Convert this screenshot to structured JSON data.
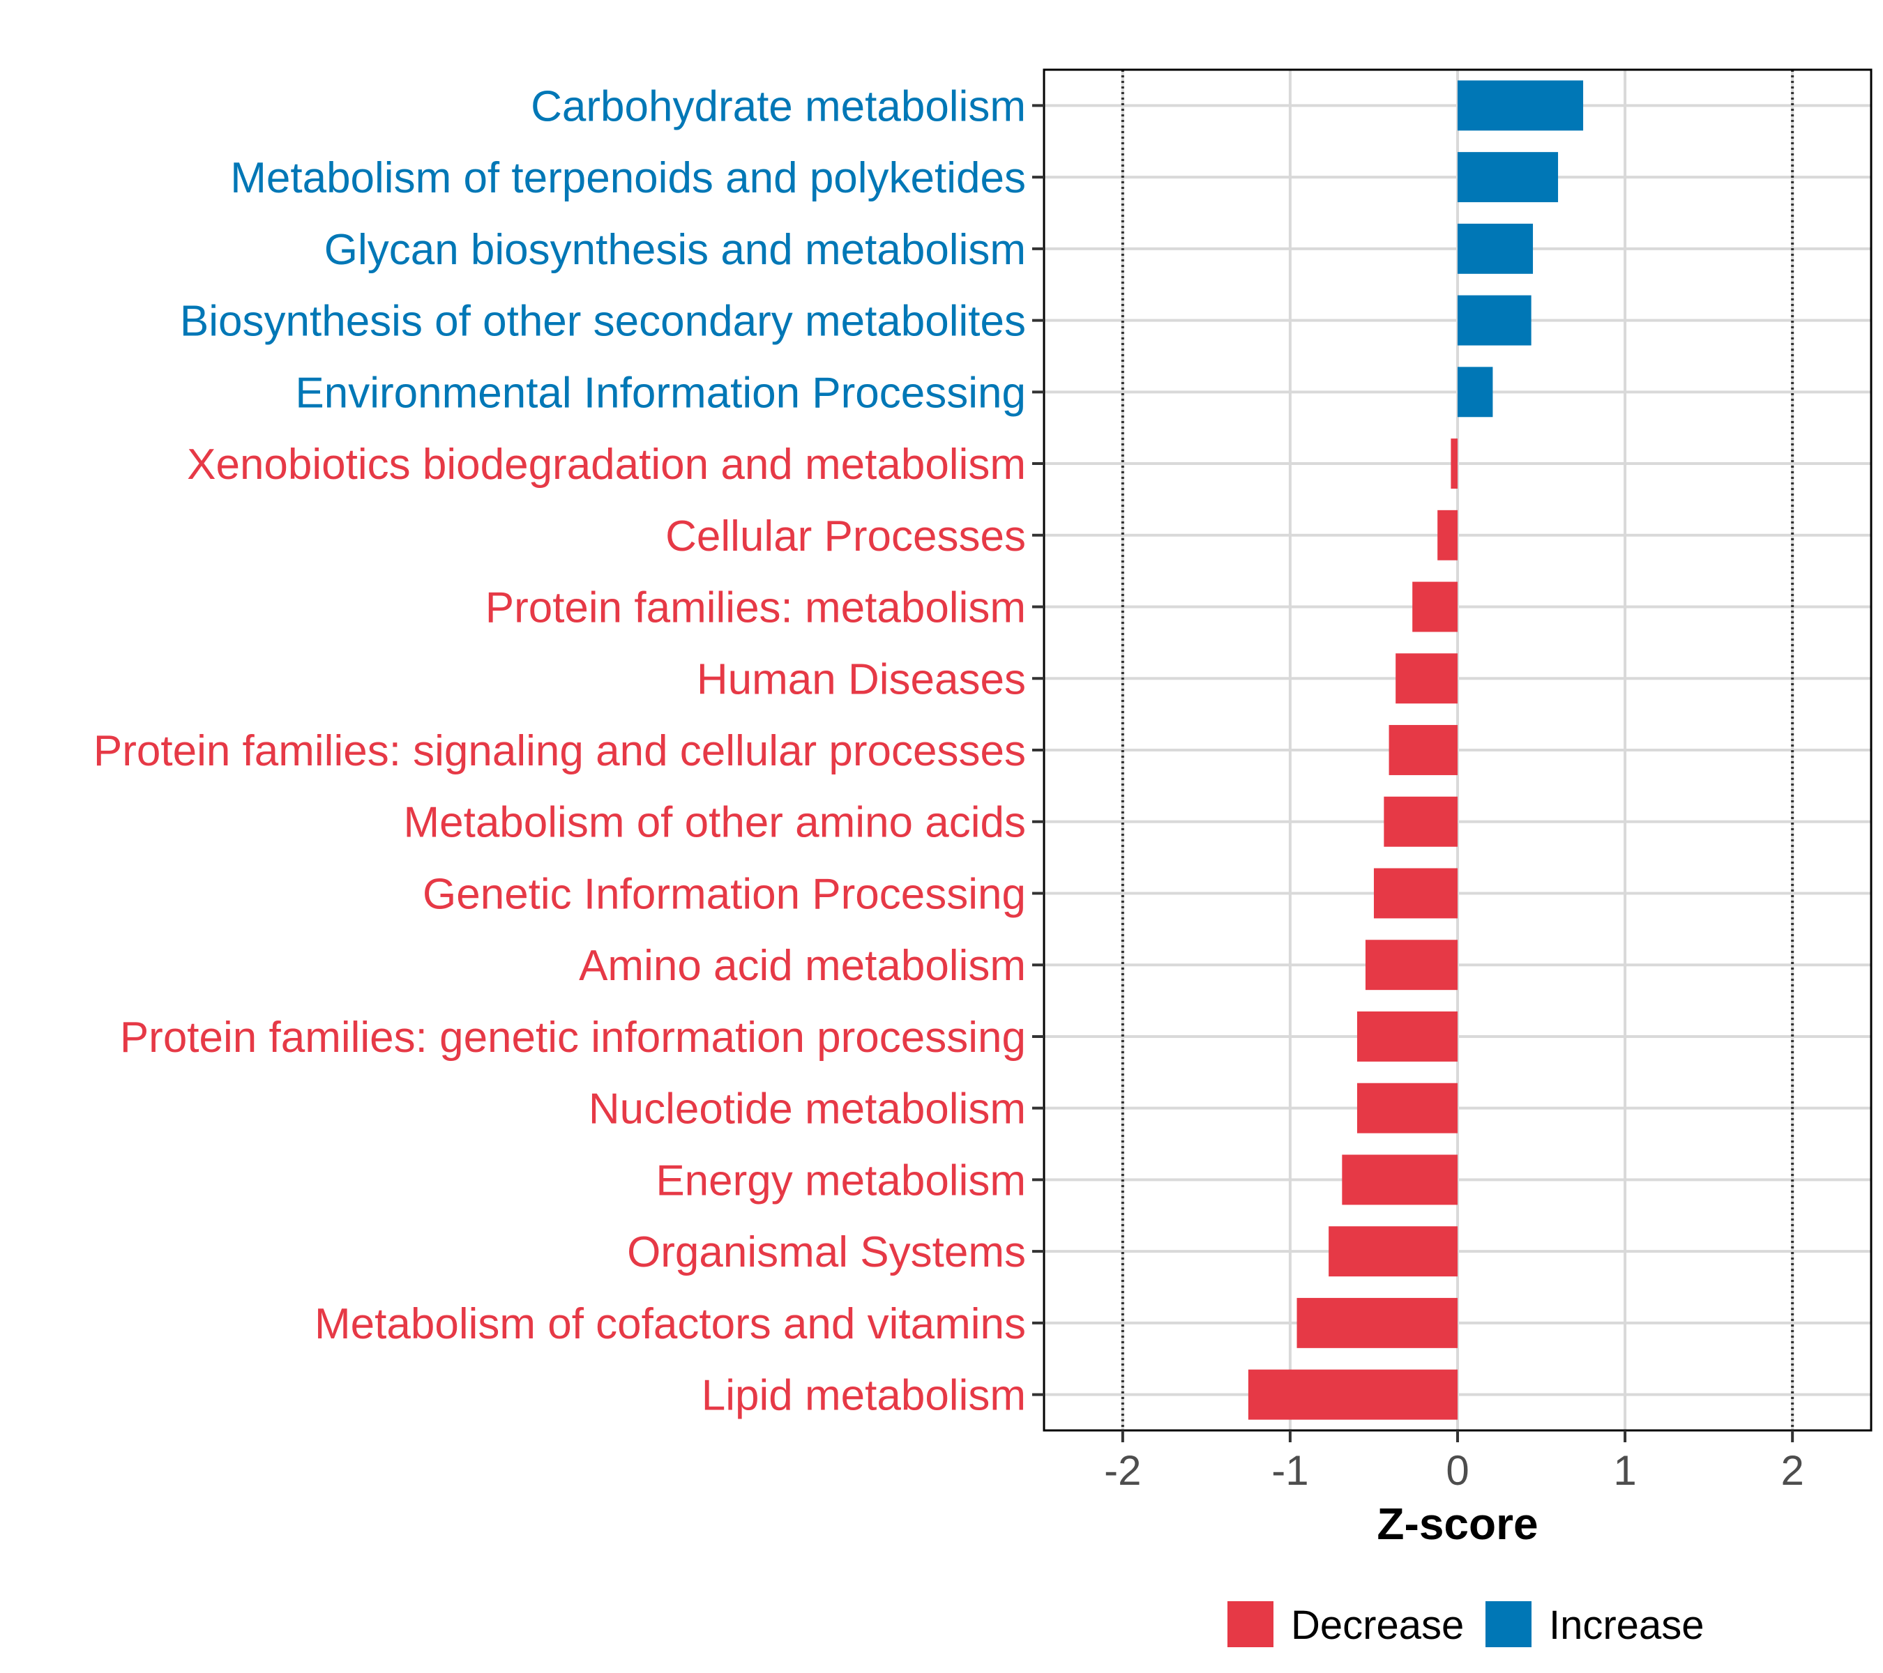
{
  "chart_data": {
    "type": "bar",
    "orientation": "horizontal",
    "categories": [
      "Carbohydrate metabolism",
      "Metabolism of terpenoids and polyketides",
      "Glycan biosynthesis and metabolism",
      "Biosynthesis of other secondary metabolites",
      "Environmental Information Processing",
      "Xenobiotics biodegradation and metabolism",
      "Cellular Processes",
      "Protein families: metabolism",
      "Human Diseases",
      "Protein families: signaling and cellular processes",
      "Metabolism of other amino acids",
      "Genetic Information Processing",
      "Amino acid metabolism",
      "Protein families: genetic information processing",
      "Nucleotide metabolism",
      "Energy metabolism",
      "Organismal Systems",
      "Metabolism of cofactors and vitamins",
      "Lipid metabolism"
    ],
    "values": [
      0.75,
      0.6,
      0.45,
      0.44,
      0.21,
      -0.04,
      -0.12,
      -0.27,
      -0.37,
      -0.41,
      -0.44,
      -0.5,
      -0.55,
      -0.6,
      -0.6,
      -0.69,
      -0.77,
      -0.96,
      -1.25
    ],
    "groups": [
      "Increase",
      "Increase",
      "Increase",
      "Increase",
      "Increase",
      "Decrease",
      "Decrease",
      "Decrease",
      "Decrease",
      "Decrease",
      "Decrease",
      "Decrease",
      "Decrease",
      "Decrease",
      "Decrease",
      "Decrease",
      "Decrease",
      "Decrease",
      "Decrease"
    ],
    "title": "",
    "xlabel": "Z-score",
    "ylabel": "",
    "xlim": [
      -2.47,
      2.47
    ],
    "xticks": [
      -2,
      -1,
      0,
      1,
      2
    ],
    "xtick_labels": [
      "-2",
      "-1",
      "0",
      "1",
      "2"
    ],
    "reference_lines": [
      -2,
      2
    ],
    "grid": true,
    "legend": {
      "position": "bottom",
      "entries": [
        {
          "label": "Decrease",
          "color": "#e63946"
        },
        {
          "label": "Increase",
          "color": "#0077b6"
        }
      ]
    },
    "colors": {
      "Decrease": "#e63946",
      "Increase": "#0077b6"
    }
  }
}
